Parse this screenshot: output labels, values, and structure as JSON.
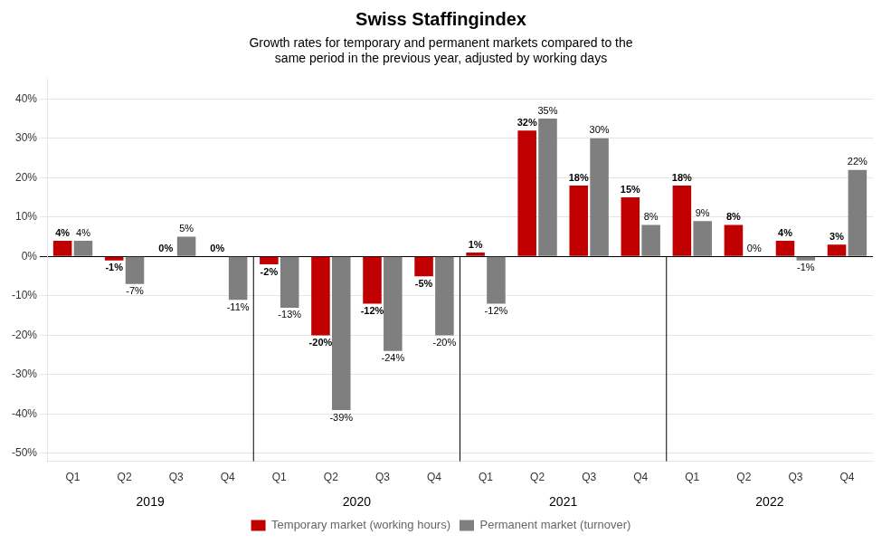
{
  "chart_data": {
    "type": "bar",
    "title": "Swiss Staffingindex",
    "subtitle": "Growth rates for temporary and permanent markets compared to the\nsame period in the previous year, adjusted by working days",
    "categories": [
      "Q1",
      "Q2",
      "Q3",
      "Q4",
      "Q1",
      "Q2",
      "Q3",
      "Q4",
      "Q1",
      "Q2",
      "Q3",
      "Q4",
      "Q1",
      "Q2",
      "Q3",
      "Q4"
    ],
    "x_groups": [
      "2019",
      "2020",
      "2021",
      "2022"
    ],
    "series": [
      {
        "name": "Temporary market (working hours)",
        "color": "#c00000",
        "values": [
          4,
          -1,
          0,
          0,
          -2,
          -20,
          -12,
          -5,
          1,
          32,
          18,
          15,
          18,
          8,
          4,
          3
        ],
        "value_labels": [
          "4%",
          "-1%",
          "0%",
          "0%",
          "-2%",
          "-20%",
          "-12%",
          "-5%",
          "1%",
          "32%",
          "18%",
          "15%",
          "18%",
          "8%",
          "4%",
          "3%"
        ]
      },
      {
        "name": "Permanent market (turnover)",
        "color": "#7f7f7f",
        "values": [
          4,
          -7,
          5,
          -11,
          -13,
          -39,
          -24,
          -20,
          -12,
          35,
          30,
          8,
          9,
          0,
          -1,
          22
        ],
        "value_labels": [
          "4%",
          "-7%",
          "5%",
          "-11%",
          "-13%",
          "-39%",
          "-24%",
          "-20%",
          "-12%",
          "35%",
          "30%",
          "8%",
          "9%",
          "0%",
          "-1%",
          "22%"
        ]
      }
    ],
    "ylim": [
      -52,
      45
    ],
    "yticks": [
      {
        "value": -50,
        "label": "-50%"
      },
      {
        "value": -40,
        "label": "-40%"
      },
      {
        "value": -30,
        "label": "-30%"
      },
      {
        "value": -20,
        "label": "-20%"
      },
      {
        "value": -10,
        "label": "-10%"
      },
      {
        "value": 0,
        "label": "0%"
      },
      {
        "value": 10,
        "label": "10%"
      },
      {
        "value": 20,
        "label": "20%"
      },
      {
        "value": 30,
        "label": "30%"
      },
      {
        "value": 40,
        "label": "40%"
      }
    ],
    "grid": true,
    "legend": "bottom",
    "data_labels": true
  }
}
